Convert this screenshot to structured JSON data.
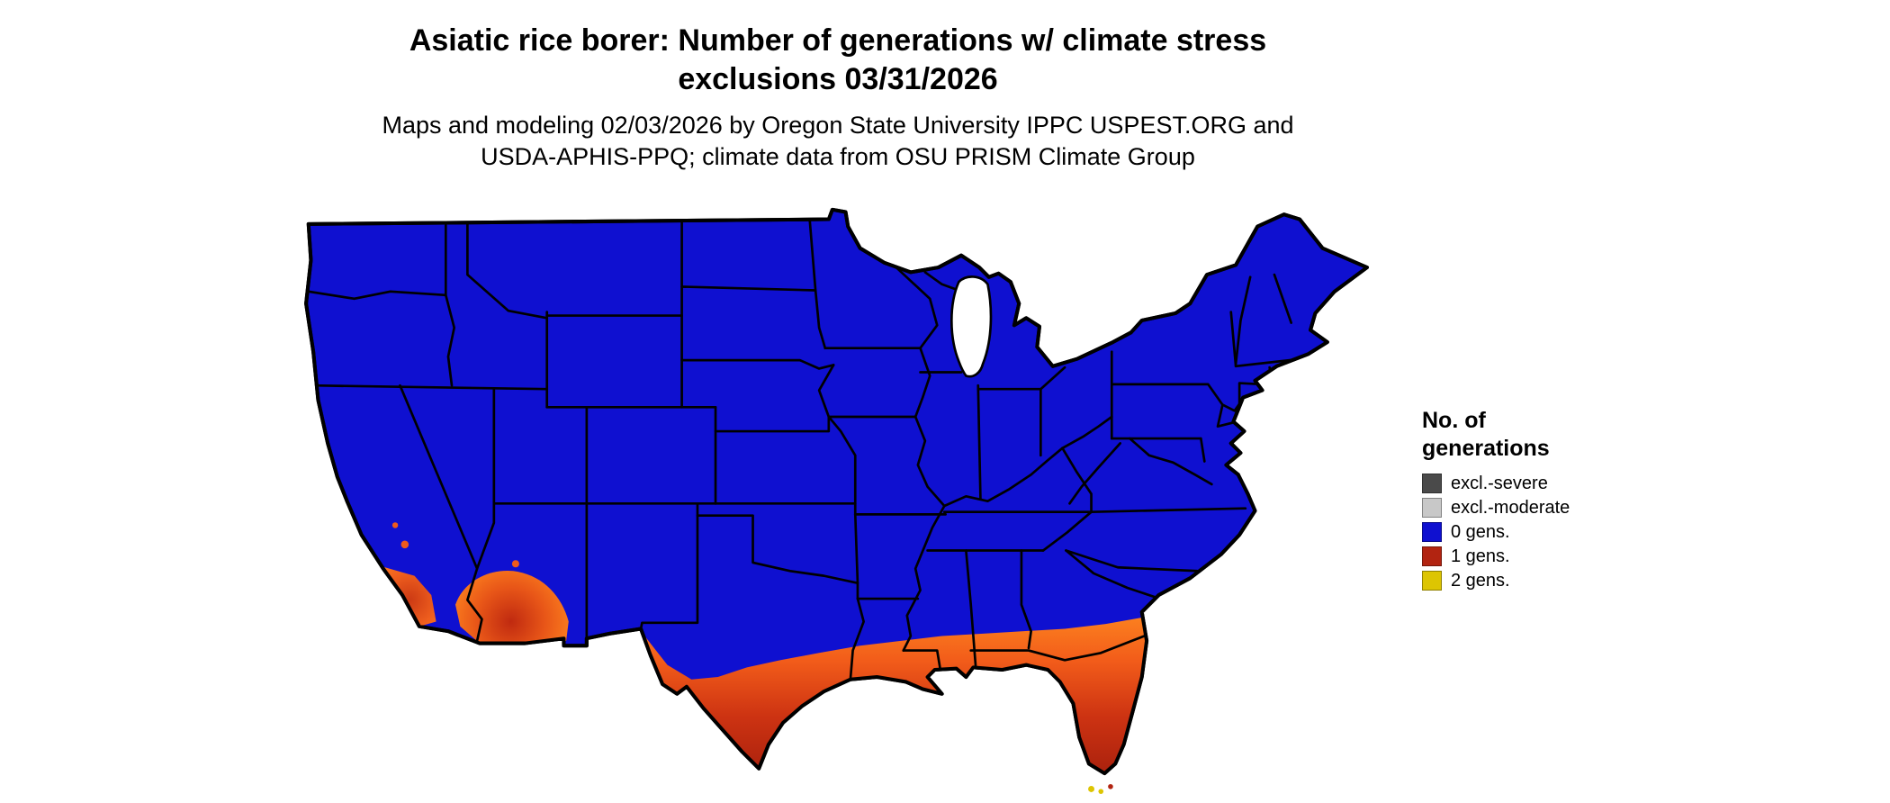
{
  "title": {
    "line1": "Asiatic rice borer: Number of generations w/ climate stress",
    "line2": "exclusions 03/31/2026"
  },
  "subtitle": {
    "line1": "Maps and modeling 02/03/2026 by Oregon State University IPPC USPEST.ORG and",
    "line2": "USDA-APHIS-PPQ; climate data from OSU PRISM Climate Group"
  },
  "legend": {
    "title_line1": "No. of",
    "title_line2": "generations",
    "items": [
      {
        "label": "excl.-severe",
        "color": "#4a4a4a"
      },
      {
        "label": "excl.-moderate",
        "color": "#c8c8c8"
      },
      {
        "label": "0 gens.",
        "color": "#0f10d0"
      },
      {
        "label": "1 gens.",
        "color": "#b22411"
      },
      {
        "label": "2 gens.",
        "color": "#ddc502"
      }
    ]
  },
  "map": {
    "region": "Contiguous United States",
    "colors": {
      "gens0": "#0f10d0",
      "gens1_fringe": "#ff8a20",
      "gens1_core": "#a01c0c",
      "gens2": "#ddc502",
      "water": "#ffffff",
      "border": "#000000"
    },
    "gens1_regions": [
      "Southern California coast",
      "Southern Arizona and lower Colorado River",
      "Southern and coastal Texas",
      "Gulf Coast (Louisiana, Mississippi, Alabama)",
      "Southern Georgia and Florida peninsula"
    ],
    "gens2_regions": [
      "Florida Keys"
    ]
  }
}
